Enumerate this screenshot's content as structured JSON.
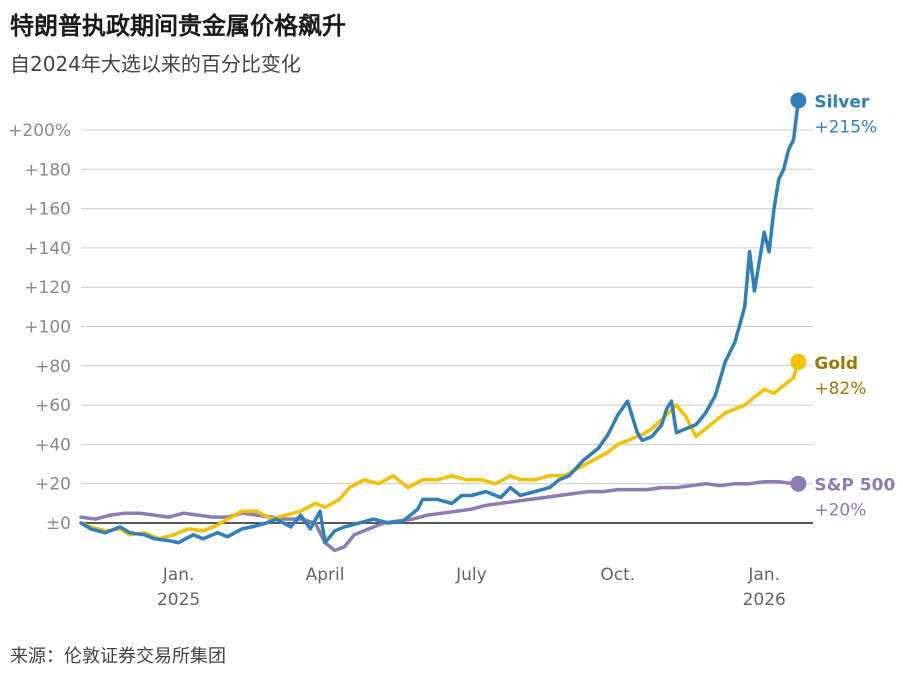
{
  "title": "特朗普执政期间贵金属价格飙升",
  "subtitle": "自2024年大选以来的百分比变化",
  "source": "来源：伦敦证券交易所集团",
  "colors": {
    "silver": "#2f7fb8",
    "gold": "#f2c200",
    "sp500": "#8c7bb5",
    "grid": "#cccccc",
    "zero": "#222222"
  },
  "chart_data": {
    "type": "line",
    "title": "特朗普执政期间贵金属价格飙升",
    "subtitle": "自2024年大选以来的百分比变化",
    "xlabel": "",
    "ylabel": "",
    "ylim": [
      -20,
      215
    ],
    "yticks": [
      {
        "value": 200,
        "label": "+200%"
      },
      {
        "value": 180,
        "label": "+180"
      },
      {
        "value": 160,
        "label": "+160"
      },
      {
        "value": 140,
        "label": "+140"
      },
      {
        "value": 120,
        "label": "+120"
      },
      {
        "value": 100,
        "label": "+100"
      },
      {
        "value": 80,
        "label": "+80"
      },
      {
        "value": 60,
        "label": "+60"
      },
      {
        "value": 40,
        "label": "+40"
      },
      {
        "value": 20,
        "label": "+20"
      },
      {
        "value": 0,
        "label": "±0"
      }
    ],
    "xlim": [
      0,
      15
    ],
    "xticks": [
      {
        "value": 2.0,
        "label": "Jan.",
        "label2": "2025"
      },
      {
        "value": 5.0,
        "label": "April",
        "label2": ""
      },
      {
        "value": 8.0,
        "label": "July",
        "label2": ""
      },
      {
        "value": 11.0,
        "label": "Oct.",
        "label2": ""
      },
      {
        "value": 14.0,
        "label": "Jan.",
        "label2": "2026"
      }
    ],
    "grid": true,
    "series": [
      {
        "name": "Silver",
        "end_label": "+215%",
        "color": "#2f7fb8",
        "x": [
          0.0,
          0.2,
          0.5,
          0.8,
          1.0,
          1.3,
          1.5,
          1.8,
          2.0,
          2.3,
          2.5,
          2.8,
          3.0,
          3.3,
          3.5,
          3.8,
          4.0,
          4.3,
          4.5,
          4.7,
          4.9,
          5.0,
          5.1,
          5.2,
          5.4,
          5.7,
          6.0,
          6.3,
          6.6,
          6.9,
          7.0,
          7.3,
          7.6,
          7.8,
          8.0,
          8.3,
          8.6,
          8.8,
          9.0,
          9.3,
          9.6,
          9.8,
          10.0,
          10.3,
          10.6,
          10.8,
          11.0,
          11.2,
          11.4,
          11.5,
          11.7,
          11.9,
          12.0,
          12.1,
          12.2,
          12.4,
          12.6,
          12.8,
          13.0,
          13.2,
          13.4,
          13.6,
          13.7,
          13.8,
          14.0,
          14.1,
          14.2,
          14.3,
          14.4,
          14.5,
          14.6,
          14.7
        ],
        "values": [
          0,
          -3,
          -5,
          -2,
          -5,
          -6,
          -8,
          -9,
          -10,
          -6,
          -8,
          -5,
          -7,
          -3,
          -2,
          0,
          2,
          -2,
          4,
          -3,
          6,
          -10,
          -7,
          -4,
          -2,
          0,
          2,
          0,
          1,
          7,
          12,
          12,
          10,
          14,
          14,
          16,
          13,
          18,
          14,
          16,
          18,
          22,
          24,
          32,
          38,
          45,
          55,
          62,
          46,
          42,
          44,
          50,
          58,
          62,
          46,
          48,
          50,
          56,
          65,
          82,
          92,
          110,
          138,
          118,
          148,
          138,
          160,
          175,
          180,
          190,
          195,
          215
        ]
      },
      {
        "name": "Gold",
        "end_label": "+82%",
        "color": "#f2c200",
        "x": [
          0.0,
          0.2,
          0.5,
          0.8,
          1.0,
          1.3,
          1.6,
          1.9,
          2.2,
          2.5,
          2.8,
          3.0,
          3.3,
          3.6,
          3.9,
          4.2,
          4.5,
          4.8,
          5.0,
          5.3,
          5.5,
          5.8,
          6.1,
          6.4,
          6.7,
          7.0,
          7.3,
          7.6,
          7.9,
          8.2,
          8.5,
          8.8,
          9.0,
          9.3,
          9.6,
          9.9,
          10.2,
          10.5,
          10.8,
          11.0,
          11.2,
          11.5,
          11.7,
          12.0,
          12.2,
          12.4,
          12.6,
          12.8,
          13.0,
          13.2,
          13.4,
          13.6,
          13.8,
          14.0,
          14.2,
          14.4,
          14.6,
          14.7
        ],
        "values": [
          0,
          -2,
          -4,
          -3,
          -6,
          -5,
          -8,
          -6,
          -3,
          -4,
          -1,
          2,
          6,
          6,
          2,
          4,
          6,
          10,
          8,
          12,
          18,
          22,
          20,
          24,
          18,
          22,
          22,
          24,
          22,
          22,
          20,
          24,
          22,
          22,
          24,
          24,
          28,
          32,
          36,
          40,
          42,
          45,
          48,
          55,
          60,
          54,
          44,
          48,
          52,
          56,
          58,
          60,
          64,
          68,
          66,
          70,
          74,
          82
        ]
      },
      {
        "name": "S&P 500",
        "end_label": "+20%",
        "color": "#8c7bb5",
        "x": [
          0.0,
          0.3,
          0.6,
          0.9,
          1.2,
          1.5,
          1.8,
          2.1,
          2.4,
          2.7,
          3.0,
          3.3,
          3.6,
          3.9,
          4.2,
          4.5,
          4.8,
          5.0,
          5.2,
          5.4,
          5.6,
          5.9,
          6.2,
          6.5,
          6.8,
          7.1,
          7.4,
          7.7,
          8.0,
          8.3,
          8.6,
          8.9,
          9.2,
          9.5,
          9.8,
          10.1,
          10.4,
          10.7,
          11.0,
          11.3,
          11.6,
          11.9,
          12.2,
          12.5,
          12.8,
          13.1,
          13.4,
          13.7,
          14.0,
          14.3,
          14.6,
          14.7
        ],
        "values": [
          3,
          2,
          4,
          5,
          5,
          4,
          3,
          5,
          4,
          3,
          3,
          5,
          4,
          3,
          2,
          2,
          0,
          -10,
          -14,
          -12,
          -6,
          -3,
          0,
          1,
          2,
          4,
          5,
          6,
          7,
          9,
          10,
          11,
          12,
          13,
          14,
          15,
          16,
          16,
          17,
          17,
          17,
          18,
          18,
          19,
          20,
          19,
          20,
          20,
          21,
          21,
          20,
          20
        ]
      }
    ]
  }
}
